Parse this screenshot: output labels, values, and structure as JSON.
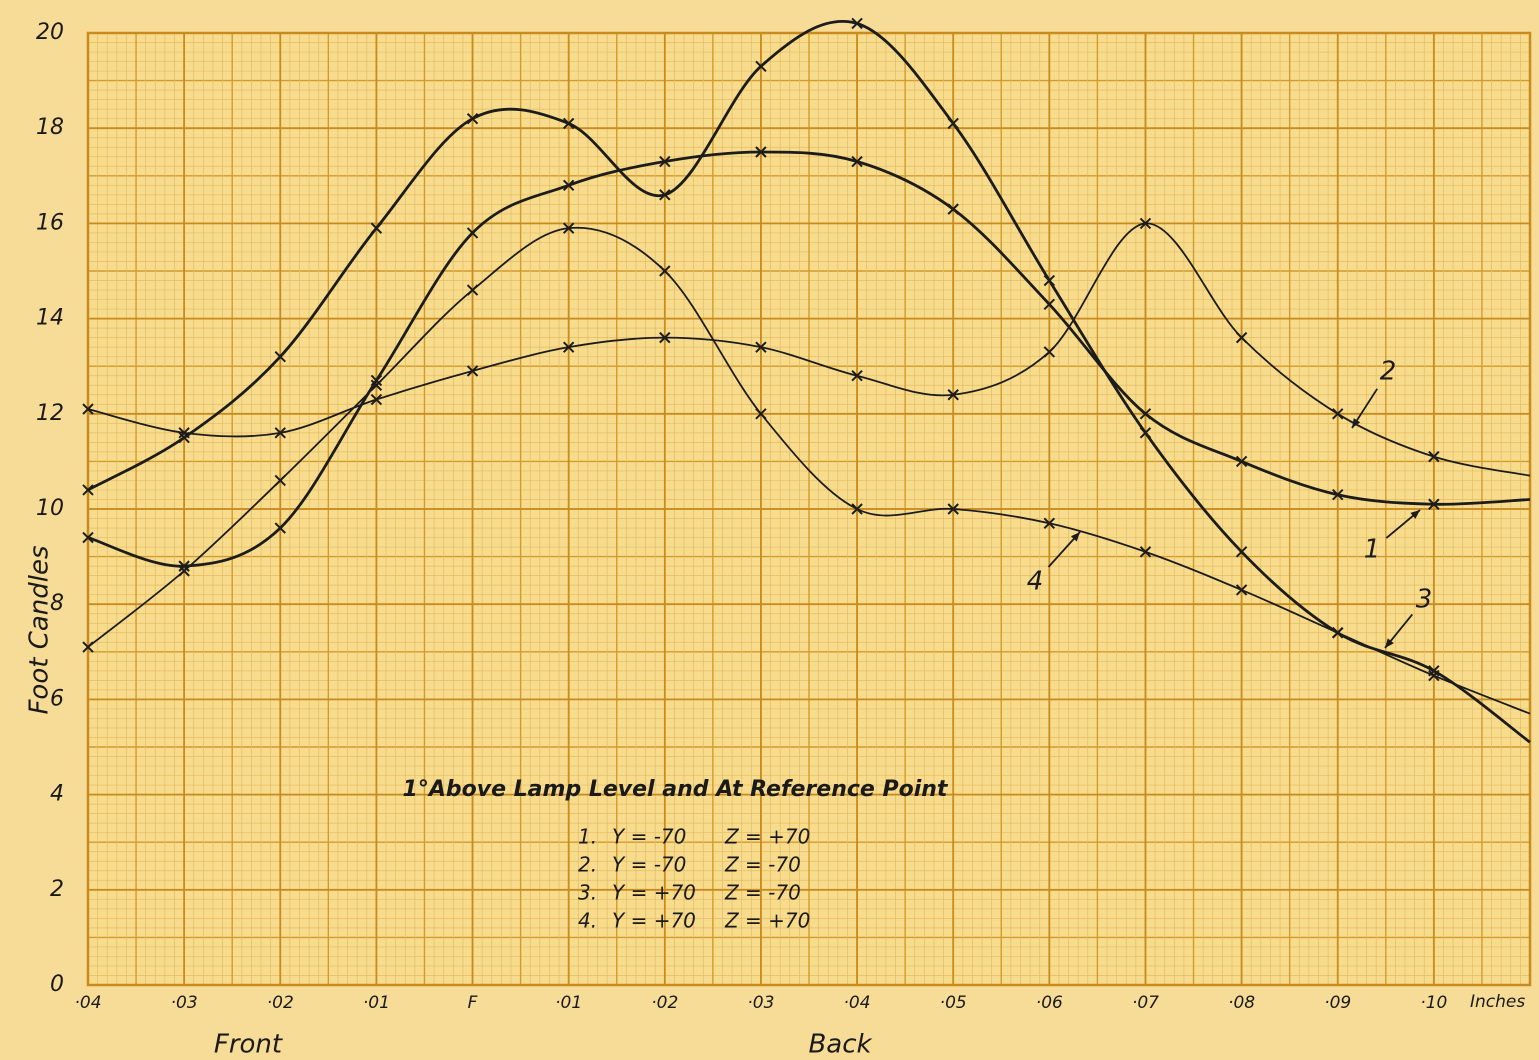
{
  "chart_data": {
    "type": "line",
    "title": "1°Above Lamp Level and At Reference Point",
    "y_label": "Foot Candles",
    "x_groups": [
      "Front",
      "Back"
    ],
    "x_unit": "Inches",
    "categories": [
      "·04",
      "·03",
      "·02",
      "·01",
      "F",
      "·01",
      "·02",
      "·03",
      "·04",
      "·05",
      "·06",
      "·07",
      "·08",
      "·09",
      "·10",
      null
    ],
    "ylim": [
      0,
      20
    ],
    "yticks": [
      0,
      2,
      4,
      6,
      8,
      10,
      12,
      14,
      16,
      18,
      20
    ],
    "grid": true,
    "series": [
      {
        "name": "1",
        "color": "#1c1c1c",
        "values": [
          9.4,
          8.8,
          9.6,
          12.7,
          15.8,
          16.8,
          17.3,
          17.5,
          17.3,
          16.3,
          14.3,
          12.0,
          11.0,
          10.3,
          10.1,
          10.2
        ]
      },
      {
        "name": "2",
        "color": "#1c1c1c",
        "values": [
          12.1,
          11.6,
          11.6,
          12.3,
          12.9,
          13.4,
          13.6,
          13.4,
          12.8,
          12.4,
          13.3,
          16.0,
          13.6,
          12.0,
          11.1,
          10.7
        ]
      },
      {
        "name": "3",
        "color": "#1c1c1c",
        "values": [
          10.4,
          11.5,
          13.2,
          15.9,
          18.2,
          18.1,
          16.6,
          19.3,
          20.2,
          18.1,
          14.8,
          11.6,
          9.1,
          7.4,
          6.6,
          5.1
        ]
      },
      {
        "name": "4",
        "color": "#1c1c1c",
        "values": [
          7.1,
          8.7,
          10.6,
          12.6,
          14.6,
          15.9,
          15.0,
          12.0,
          10.0,
          10.0,
          9.7,
          9.1,
          8.3,
          7.4,
          6.5,
          5.7
        ]
      }
    ],
    "legend_rows": [
      [
        "1.",
        "Y = -70",
        "Z = +70"
      ],
      [
        "2.",
        "Y = -70",
        "Z = -70"
      ],
      [
        "3.",
        "Y = +70",
        "Z = -70"
      ],
      [
        "4.",
        "Y = +70",
        "Z = +70"
      ]
    ]
  }
}
